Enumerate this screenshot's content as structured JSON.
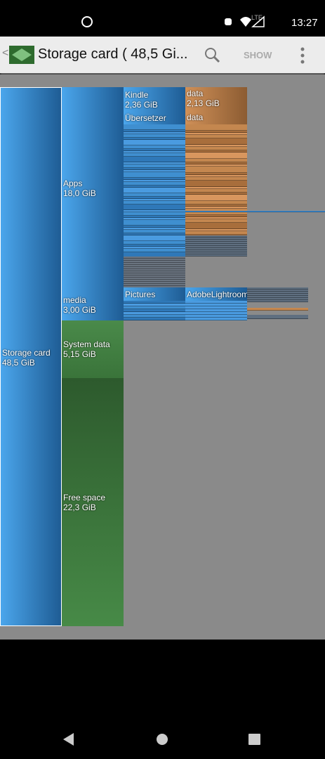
{
  "status_bar": {
    "time": "13:27",
    "network": "LTE"
  },
  "app_bar": {
    "title": "Storage card ( 48,5 Gi...",
    "action": "SHOW"
  },
  "blocks": [
    {
      "name": "Storage card",
      "size": "48,5 GiB"
    },
    {
      "name": "Apps",
      "size": "18,0 GiB"
    },
    {
      "name": "media",
      "size": "3,00 GiB"
    },
    {
      "name": "System data",
      "size": "5,15 GiB"
    },
    {
      "name": "Free space",
      "size": "22,3 GiB"
    },
    {
      "name": "Kindle",
      "size": "2,36 GiB"
    },
    {
      "name": "data",
      "size": "2,13 GiB"
    },
    {
      "name": "Übersetzer"
    },
    {
      "name": "data"
    },
    {
      "name": "Pictures"
    },
    {
      "name": "AdobeLightroom"
    }
  ]
}
